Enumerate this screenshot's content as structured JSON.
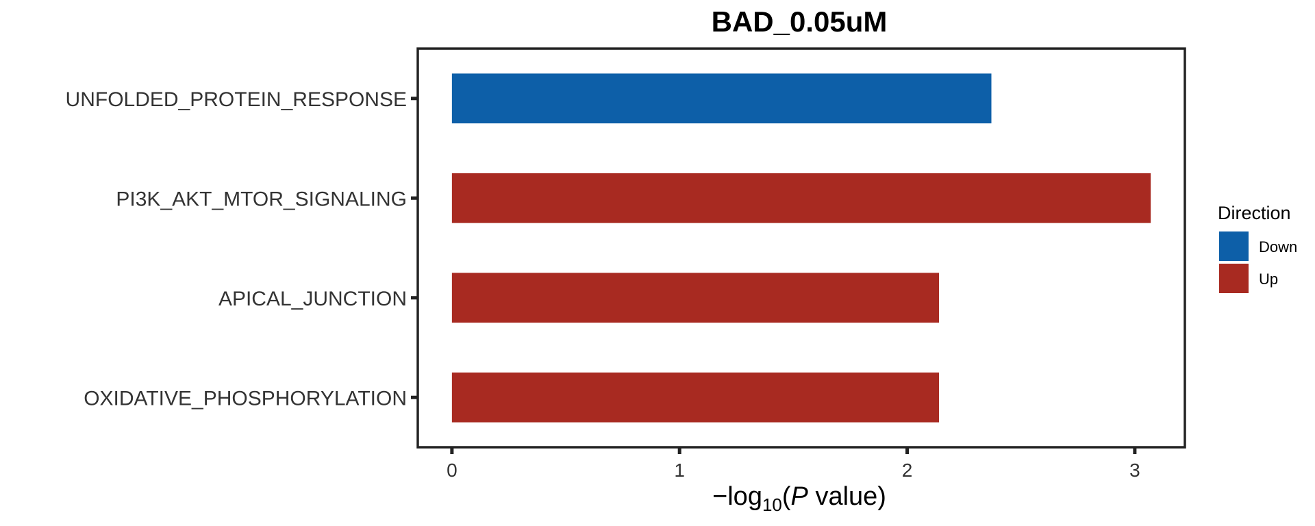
{
  "chart_data": {
    "type": "bar",
    "orientation": "horizontal",
    "title": "BAD_0.05uM",
    "xlabel": {
      "prefix": "−log",
      "subscript": "10",
      "open": "(",
      "italic": "P",
      "suffix": " value)"
    },
    "ylabel": "",
    "xlim": [
      -0.15,
      3.22
    ],
    "xticks": [
      "0",
      "1",
      "2",
      "3"
    ],
    "categories": [
      "UNFOLDED_PROTEIN_RESPONSE",
      "PI3K_AKT_MTOR_SIGNALING",
      "APICAL_JUNCTION",
      "OXIDATIVE_PHOSPHORYLATION"
    ],
    "values": [
      2.37,
      3.07,
      2.14,
      2.14
    ],
    "direction": [
      "Down",
      "Up",
      "Up",
      "Up"
    ],
    "grid": false,
    "legend": {
      "title": "Direction",
      "position": "right",
      "entries": [
        {
          "label": "Down",
          "color": "#0d5fa8"
        },
        {
          "label": "Up",
          "color": "#a82a21"
        }
      ]
    }
  }
}
